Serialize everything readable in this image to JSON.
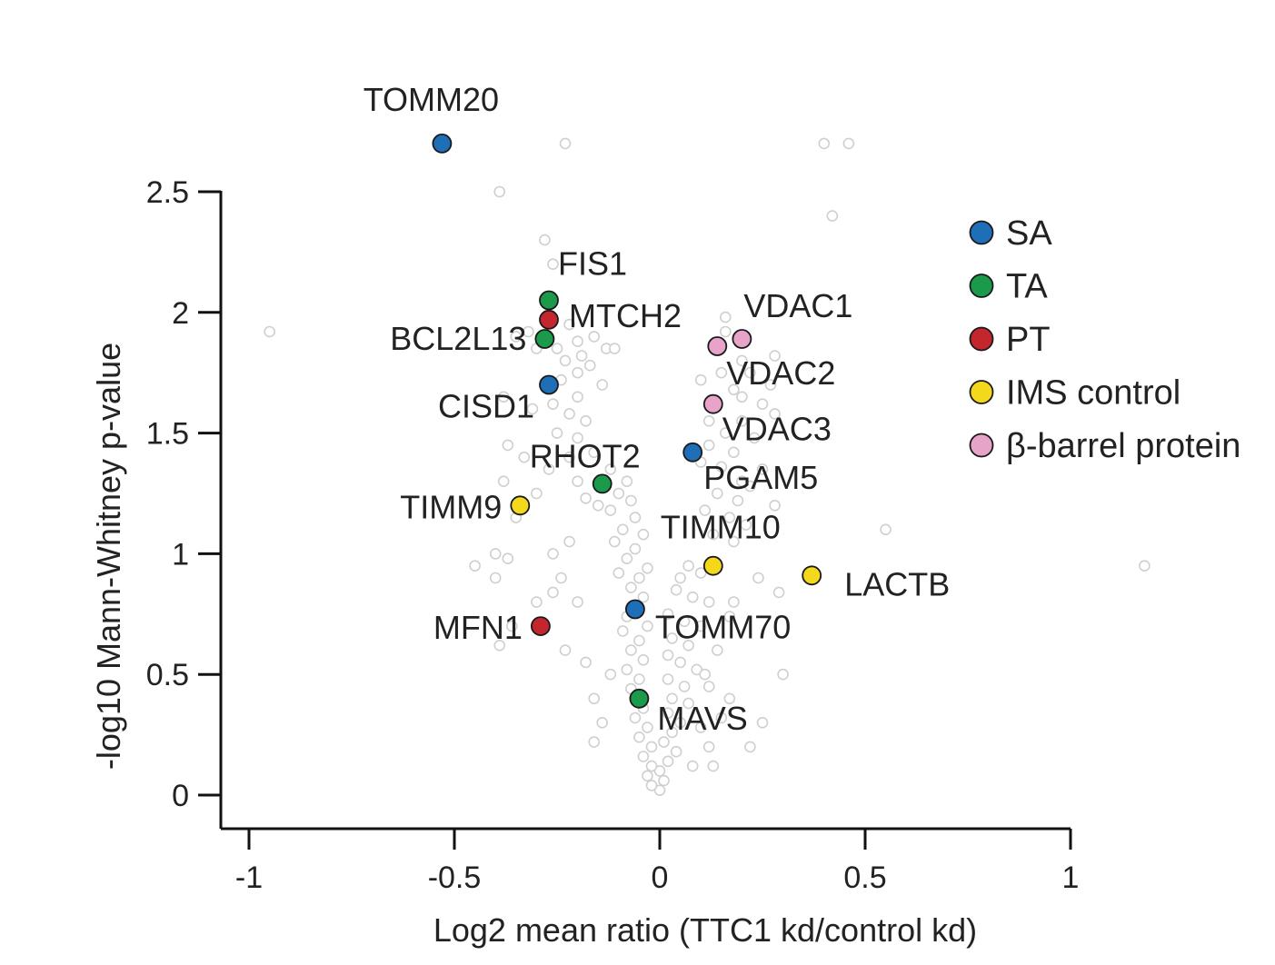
{
  "chart_data": {
    "type": "scatter",
    "title": "",
    "xlabel": "Log2 mean ratio (TTC1 kd/control kd)",
    "ylabel": "-log10 Mann-Whitney p-value",
    "xlim": [
      -1,
      1
    ],
    "ylim": [
      0,
      2.5
    ],
    "x_ticks": [
      -1,
      -0.5,
      0,
      0.5,
      1
    ],
    "x_tick_labels": [
      "-1",
      "-0.5",
      "0",
      "0.5",
      "1"
    ],
    "y_ticks": [
      0,
      0.5,
      1,
      1.5,
      2,
      2.5
    ],
    "y_tick_labels": [
      "0",
      "0.5",
      "1",
      "1.5",
      "2",
      "2.5"
    ],
    "grid": false,
    "legend_position": "right",
    "colors": {
      "background_points": "#cfcfcf",
      "SA": "#1f6fb8",
      "TA": "#1a9a4a",
      "PT": "#c4262e",
      "IMS control": "#f4d81c",
      "β-barrel protein": "#e8a3c8"
    },
    "series": [
      {
        "name": "SA",
        "color": "#1f6fb8",
        "points": [
          {
            "label": "TOMM20",
            "x": -0.53,
            "y": 2.7
          },
          {
            "label": "CISD1",
            "x": -0.27,
            "y": 1.7
          },
          {
            "label": "PGAM5",
            "x": 0.08,
            "y": 1.42
          },
          {
            "label": "TOMM70",
            "x": -0.06,
            "y": 0.77
          }
        ]
      },
      {
        "name": "TA",
        "color": "#1a9a4a",
        "points": [
          {
            "label": "FIS1",
            "x": -0.27,
            "y": 2.05
          },
          {
            "label": "BCL2L13",
            "x": -0.28,
            "y": 1.89
          },
          {
            "label": "RHOT2",
            "x": -0.14,
            "y": 1.29
          },
          {
            "label": "MAVS",
            "x": -0.05,
            "y": 0.4
          }
        ]
      },
      {
        "name": "PT",
        "color": "#c4262e",
        "points": [
          {
            "label": "MTCH2",
            "x": -0.27,
            "y": 1.97
          },
          {
            "label": "MFN1",
            "x": -0.29,
            "y": 0.7
          }
        ]
      },
      {
        "name": "IMS control",
        "color": "#f4d81c",
        "points": [
          {
            "label": "TIMM9",
            "x": -0.34,
            "y": 1.2
          },
          {
            "label": "TIMM10",
            "x": 0.13,
            "y": 0.95
          },
          {
            "label": "LACTB",
            "x": 0.37,
            "y": 0.91
          }
        ]
      },
      {
        "name": "β-barrel protein",
        "color": "#e8a3c8",
        "points": [
          {
            "label": "VDAC1",
            "x": 0.2,
            "y": 1.89
          },
          {
            "label": "VDAC2",
            "x": 0.14,
            "y": 1.86
          },
          {
            "label": "VDAC3",
            "x": 0.13,
            "y": 1.62
          }
        ]
      }
    ],
    "background_points": [
      [
        -0.23,
        2.7
      ],
      [
        0.4,
        2.7
      ],
      [
        0.46,
        2.7
      ],
      [
        -0.39,
        2.5
      ],
      [
        0.42,
        2.4
      ],
      [
        -0.28,
        2.3
      ],
      [
        -0.26,
        2.2
      ],
      [
        -0.95,
        1.92
      ],
      [
        0.16,
        1.98
      ],
      [
        0.16,
        1.92
      ],
      [
        0.2,
        1.8
      ],
      [
        0.28,
        1.82
      ],
      [
        0.27,
        1.7
      ],
      [
        0.22,
        1.75
      ],
      [
        0.2,
        1.65
      ],
      [
        0.1,
        1.72
      ],
      [
        0.15,
        1.75
      ],
      [
        0.18,
        1.68
      ],
      [
        0.25,
        1.62
      ],
      [
        0.28,
        1.58
      ],
      [
        0.12,
        1.55
      ],
      [
        0.16,
        1.5
      ],
      [
        0.2,
        1.55
      ],
      [
        0.23,
        1.48
      ],
      [
        0.12,
        1.45
      ],
      [
        0.18,
        1.42
      ],
      [
        0.1,
        1.38
      ],
      [
        0.15,
        1.36
      ],
      [
        0.2,
        1.3
      ],
      [
        0.25,
        1.35
      ],
      [
        0.14,
        1.25
      ],
      [
        0.19,
        1.22
      ],
      [
        0.22,
        1.28
      ],
      [
        0.11,
        1.18
      ],
      [
        0.17,
        1.15
      ],
      [
        0.21,
        1.12
      ],
      [
        0.28,
        1.2
      ],
      [
        0.13,
        1.08
      ],
      [
        0.18,
        1.05
      ],
      [
        0.55,
        1.1
      ],
      [
        1.18,
        0.95
      ],
      [
        0.07,
        0.95
      ],
      [
        0.1,
        0.92
      ],
      [
        0.05,
        0.9
      ],
      [
        0.04,
        0.85
      ],
      [
        0.08,
        0.82
      ],
      [
        0.12,
        0.8
      ],
      [
        0.02,
        0.75
      ],
      [
        0.06,
        0.72
      ],
      [
        0.1,
        0.7
      ],
      [
        0.03,
        0.65
      ],
      [
        0.07,
        0.62
      ],
      [
        0.02,
        0.58
      ],
      [
        0.05,
        0.55
      ],
      [
        0.09,
        0.52
      ],
      [
        0.02,
        0.48
      ],
      [
        0.06,
        0.45
      ],
      [
        0.03,
        0.4
      ],
      [
        0.07,
        0.38
      ],
      [
        0.02,
        0.34
      ],
      [
        0.05,
        0.3
      ],
      [
        0.03,
        0.26
      ],
      [
        0.01,
        0.22
      ],
      [
        0.04,
        0.18
      ],
      [
        0.02,
        0.14
      ],
      [
        0.0,
        0.1
      ],
      [
        0.01,
        0.06
      ],
      [
        0.0,
        0.02
      ],
      [
        -0.02,
        0.04
      ],
      [
        -0.03,
        0.08
      ],
      [
        -0.02,
        0.12
      ],
      [
        -0.04,
        0.16
      ],
      [
        -0.02,
        0.2
      ],
      [
        -0.05,
        0.24
      ],
      [
        -0.03,
        0.28
      ],
      [
        -0.06,
        0.32
      ],
      [
        -0.04,
        0.36
      ],
      [
        -0.07,
        0.44
      ],
      [
        -0.05,
        0.48
      ],
      [
        -0.08,
        0.52
      ],
      [
        -0.04,
        0.56
      ],
      [
        -0.07,
        0.6
      ],
      [
        -0.05,
        0.64
      ],
      [
        -0.09,
        0.68
      ],
      [
        -0.03,
        0.7
      ],
      [
        -0.08,
        0.74
      ],
      [
        -0.04,
        0.82
      ],
      [
        -0.07,
        0.86
      ],
      [
        -0.05,
        0.9
      ],
      [
        -0.1,
        0.92
      ],
      [
        -0.03,
        0.94
      ],
      [
        -0.08,
        0.98
      ],
      [
        -0.06,
        1.02
      ],
      [
        -0.11,
        1.05
      ],
      [
        -0.04,
        1.08
      ],
      [
        -0.09,
        1.1
      ],
      [
        -0.06,
        1.15
      ],
      [
        -0.12,
        1.18
      ],
      [
        -0.07,
        1.22
      ],
      [
        -0.15,
        1.2
      ],
      [
        -0.1,
        1.25
      ],
      [
        -0.18,
        1.23
      ],
      [
        -0.08,
        1.3
      ],
      [
        -0.2,
        1.3
      ],
      [
        -0.12,
        1.35
      ],
      [
        -0.22,
        1.4
      ],
      [
        -0.16,
        1.42
      ],
      [
        -0.2,
        1.48
      ],
      [
        -0.25,
        1.5
      ],
      [
        -0.18,
        1.55
      ],
      [
        -0.22,
        1.58
      ],
      [
        -0.26,
        1.62
      ],
      [
        -0.2,
        1.65
      ],
      [
        -0.24,
        1.72
      ],
      [
        -0.2,
        1.75
      ],
      [
        -0.23,
        1.8
      ],
      [
        -0.19,
        1.82
      ],
      [
        -0.25,
        1.85
      ],
      [
        -0.2,
        1.88
      ],
      [
        -0.16,
        1.9
      ],
      [
        -0.22,
        1.95
      ],
      [
        -0.13,
        1.85
      ],
      [
        -0.17,
        1.78
      ],
      [
        -0.14,
        1.7
      ],
      [
        -0.11,
        1.85
      ],
      [
        -0.32,
        1.92
      ],
      [
        -0.35,
        1.9
      ],
      [
        -0.3,
        1.85
      ],
      [
        -0.38,
        1.65
      ],
      [
        -0.31,
        1.6
      ],
      [
        -0.37,
        1.45
      ],
      [
        -0.33,
        1.4
      ],
      [
        -0.38,
        1.3
      ],
      [
        -0.27,
        1.35
      ],
      [
        -0.3,
        1.25
      ],
      [
        -0.35,
        1.15
      ],
      [
        -0.4,
        1.0
      ],
      [
        -0.37,
        0.98
      ],
      [
        -0.45,
        0.95
      ],
      [
        -0.4,
        0.9
      ],
      [
        -0.26,
        1.0
      ],
      [
        -0.22,
        1.05
      ],
      [
        -0.24,
        0.9
      ],
      [
        -0.26,
        0.84
      ],
      [
        -0.2,
        0.8
      ],
      [
        -0.3,
        0.8
      ],
      [
        -0.36,
        0.7
      ],
      [
        -0.39,
        0.62
      ],
      [
        -0.23,
        0.6
      ],
      [
        -0.18,
        0.55
      ],
      [
        -0.12,
        0.5
      ],
      [
        -0.16,
        0.4
      ],
      [
        -0.14,
        0.3
      ],
      [
        -0.16,
        0.22
      ],
      [
        0.12,
        0.45
      ],
      [
        0.15,
        0.32
      ],
      [
        0.1,
        0.28
      ],
      [
        0.12,
        0.2
      ],
      [
        0.17,
        0.4
      ],
      [
        0.08,
        0.12
      ],
      [
        0.18,
        0.8
      ],
      [
        0.24,
        0.9
      ],
      [
        0.29,
        0.84
      ],
      [
        0.17,
        0.74
      ],
      [
        0.14,
        0.6
      ],
      [
        0.3,
        0.5
      ],
      [
        0.22,
        0.2
      ],
      [
        0.25,
        0.3
      ],
      [
        0.11,
        0.5
      ],
      [
        0.13,
        0.12
      ]
    ]
  },
  "legend": {
    "items": [
      {
        "label": "SA",
        "color": "#1f6fb8"
      },
      {
        "label": "TA",
        "color": "#1a9a4a"
      },
      {
        "label": "PT",
        "color": "#c4262e"
      },
      {
        "label": "IMS control",
        "color": "#f4d81c"
      },
      {
        "label": "β-barrel protein",
        "color": "#e8a3c8"
      }
    ]
  }
}
